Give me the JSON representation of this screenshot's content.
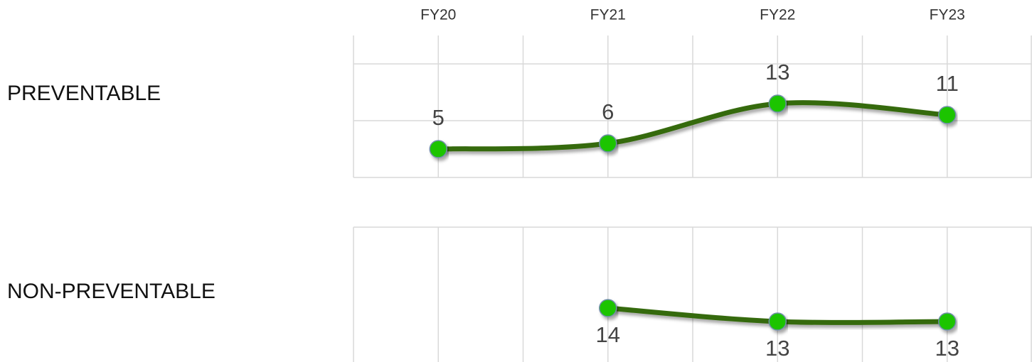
{
  "chart_data": [
    {
      "type": "line",
      "title": "PREVENTABLE",
      "categories": [
        "FY20",
        "FY21",
        "FY22",
        "FY23"
      ],
      "series": [
        {
          "name": null,
          "color": "#366b0c",
          "values": [
            5,
            6,
            13,
            11
          ]
        }
      ],
      "marker_color": "#1ec400",
      "ylim": [
        0,
        25
      ],
      "yticks": [
        0,
        10,
        20
      ],
      "grid": true,
      "label_position": "above"
    },
    {
      "type": "line",
      "title": "NON-PREVENTABLE",
      "series": [
        {
          "name": null,
          "color": "#366b0c",
          "values": [
            null,
            14,
            13,
            13
          ]
        }
      ],
      "marker_color": "#1ec400",
      "ylim": [
        10,
        20
      ],
      "grid": true,
      "label_position": "below"
    }
  ]
}
